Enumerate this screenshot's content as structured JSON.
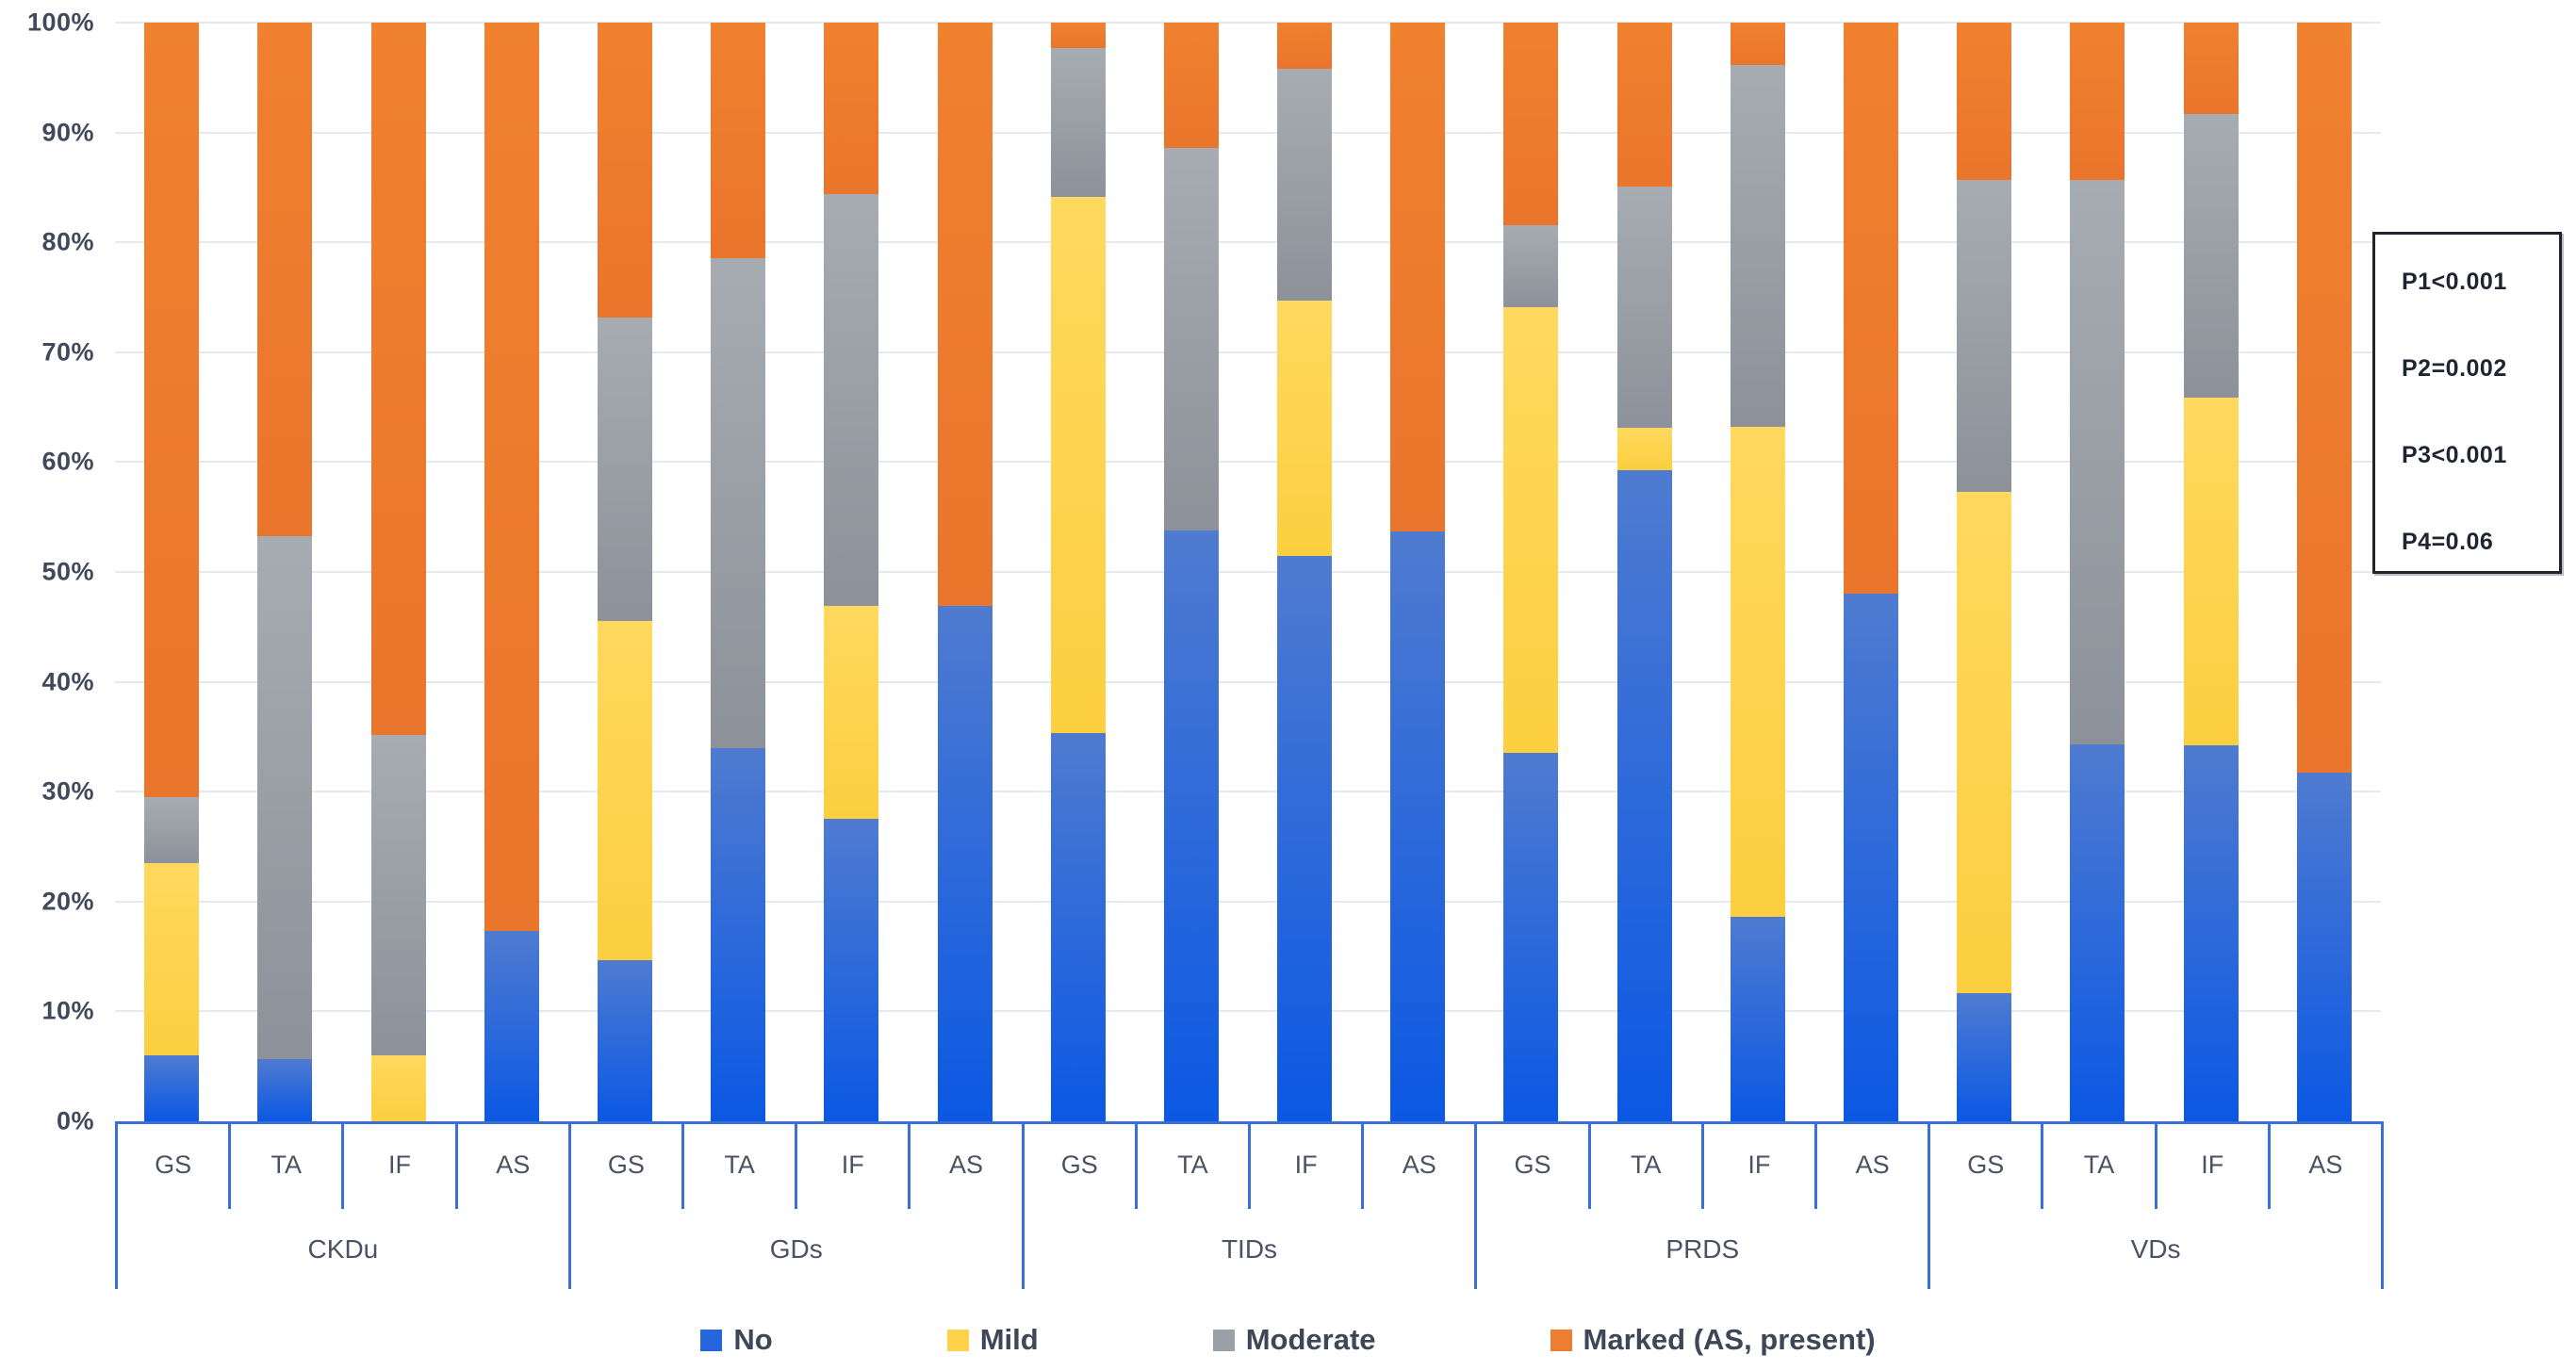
{
  "chart_data": {
    "type": "bar",
    "stacked": true,
    "percent_stacked": true,
    "grid": true,
    "groups": [
      "CKDu",
      "GDs",
      "TIDs",
      "PRDS",
      "VDs"
    ],
    "categories": [
      "GS",
      "TA",
      "IF",
      "AS"
    ],
    "series": [
      {
        "name": "No",
        "color": "#2566dd",
        "css_class": "seg-no",
        "values": [
          [
            6.0,
            5.7,
            0.0,
            17.3
          ],
          [
            14.7,
            34.0,
            27.5,
            46.9
          ],
          [
            35.3,
            53.8,
            51.5,
            53.7
          ],
          [
            33.5,
            59.3,
            18.6,
            48.0
          ],
          [
            11.7,
            34.3,
            34.2,
            31.7
          ]
        ]
      },
      {
        "name": "Mild",
        "color": "#ffd24a",
        "css_class": "seg-mild",
        "values": [
          [
            17.5,
            0.0,
            6.0,
            0.0
          ],
          [
            30.8,
            0.0,
            19.4,
            0.0
          ],
          [
            48.8,
            0.0,
            23.2,
            0.0
          ],
          [
            40.6,
            3.8,
            44.6,
            0.0
          ],
          [
            45.6,
            0.0,
            31.7,
            0.0
          ]
        ]
      },
      {
        "name": "Moderate",
        "color": "#9aa0a7",
        "css_class": "seg-moderate",
        "values": [
          [
            6.0,
            47.6,
            29.2,
            0.0
          ],
          [
            27.7,
            44.6,
            37.5,
            0.0
          ],
          [
            13.6,
            34.8,
            21.1,
            0.0
          ],
          [
            7.5,
            22.0,
            32.9,
            0.0
          ],
          [
            28.4,
            51.4,
            25.8,
            0.0
          ]
        ]
      },
      {
        "name": "Marked (AS, present)",
        "color": "#ed7d31",
        "css_class": "seg-marked",
        "values": [
          [
            70.5,
            46.7,
            64.8,
            82.7
          ],
          [
            26.8,
            21.4,
            15.6,
            53.1
          ],
          [
            2.3,
            11.4,
            4.2,
            46.3
          ],
          [
            18.4,
            14.9,
            3.9,
            52.0
          ],
          [
            14.3,
            14.3,
            8.3,
            68.3
          ]
        ]
      }
    ],
    "ylim": [
      0,
      100
    ],
    "yticks": [
      "100%",
      "90%",
      "80%",
      "70%",
      "60%",
      "50%",
      "40%",
      "30%",
      "20%",
      "10%",
      "0%"
    ],
    "legend_position": "bottom",
    "title": "",
    "xlabel": "",
    "ylabel": ""
  },
  "annotation_box": {
    "lines": [
      "P1<0.001",
      "P2=0.002",
      "P3<0.001",
      "P4=0.06"
    ]
  },
  "colors": {
    "axis_line": "#3a70d6",
    "gridline": "#e4e9f1",
    "tick_text": "#404a5c",
    "legend_text": "#3e4757",
    "annotation_border": "#23232e",
    "annotation_text": "#1f2430"
  }
}
